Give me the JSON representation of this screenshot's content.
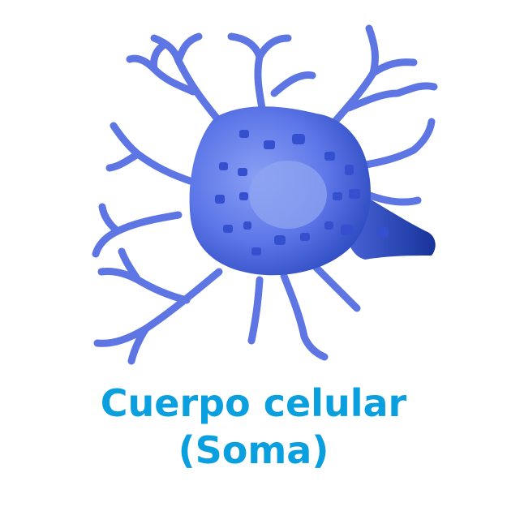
{
  "illustration": {
    "subject": "neuron-cell-body",
    "colors": {
      "body_light": "#7f97f2",
      "body_main": "#5a73e6",
      "body_dark": "#1f3fae",
      "dendrite": "#5e76e4",
      "granule": "#3550cf",
      "nucleus": "#8fa4f0"
    }
  },
  "caption": {
    "line1": "Cuerpo celular",
    "line2": "(Soma)",
    "color": "#0aa0e0"
  }
}
